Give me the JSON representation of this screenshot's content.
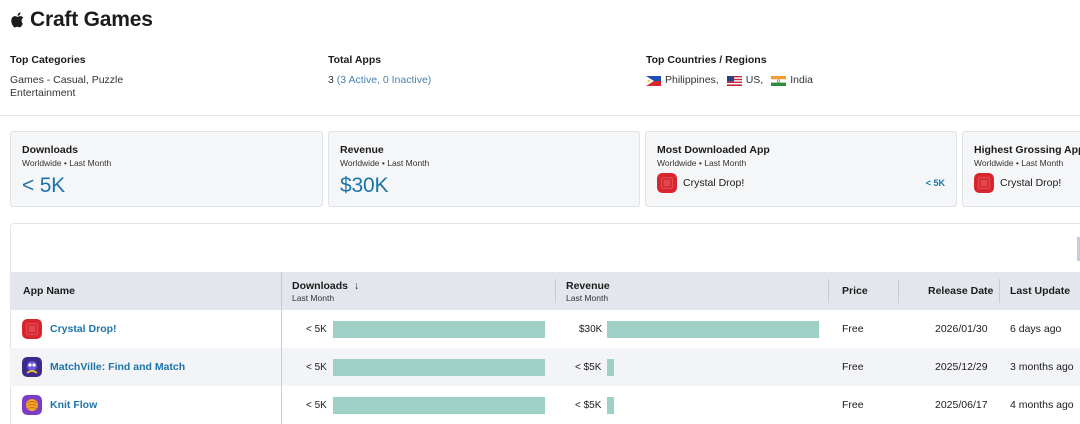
{
  "publisher": {
    "name": "Craft Games",
    "platform_icon": "apple-icon"
  },
  "summary": {
    "top_categories": {
      "label": "Top Categories",
      "line1": "Games  -  Casual,  Puzzle",
      "line2": "Entertainment"
    },
    "total_apps": {
      "label": "Total Apps",
      "count": "3",
      "detail": "(3 Active, 0 Inactive)"
    },
    "top_countries": {
      "label": "Top Countries / Regions",
      "items": [
        "Philippines,",
        "US,",
        "India"
      ]
    }
  },
  "cards": {
    "downloads": {
      "title": "Downloads",
      "sub": "Worldwide • Last Month",
      "value": "< 5K"
    },
    "revenue": {
      "title": "Revenue",
      "sub": "Worldwide • Last Month",
      "value": "$30K"
    },
    "most_downloaded": {
      "title": "Most Downloaded App",
      "sub": "Worldwide • Last Month",
      "app": "Crystal Drop!",
      "value": "< 5K"
    },
    "highest_grossing": {
      "title": "Highest Grossing App",
      "sub": "Worldwide • Last Month",
      "app": "Crystal Drop!"
    }
  },
  "table": {
    "headers": {
      "app_name": "App Name",
      "downloads": "Downloads",
      "downloads_sub": "Last Month",
      "sort_indicator": "↓",
      "revenue": "Revenue",
      "revenue_sub": "Last Month",
      "price": "Price",
      "release_date": "Release Date",
      "last_update": "Last Update"
    },
    "rows": [
      {
        "name": "Crystal Drop!",
        "icon": "crystal-drop-icon",
        "downloads": "< 5K",
        "downloads_share": 1.0,
        "revenue": "$30K",
        "revenue_share": 1.0,
        "price": "Free",
        "release_date": "2026/01/30",
        "last_update": "6 days ago"
      },
      {
        "name": "MatchVille: Find and Match",
        "icon": "matchville-icon",
        "downloads": "< 5K",
        "downloads_share": 1.0,
        "revenue": "< $5K",
        "revenue_share": 0.035,
        "price": "Free",
        "release_date": "2025/12/29",
        "last_update": "3 months ago"
      },
      {
        "name": "Knit Flow",
        "icon": "knit-flow-icon",
        "downloads": "< 5K",
        "downloads_share": 1.0,
        "revenue": "< $5K",
        "revenue_share": 0.035,
        "price": "Free",
        "release_date": "2025/06/17",
        "last_update": "4 months ago"
      }
    ]
  },
  "colors": {
    "accent": "#1d74a8",
    "bar": "#9fd0c6",
    "header_bg": "#e3e6ec",
    "card_bg": "#f5f6f8"
  }
}
